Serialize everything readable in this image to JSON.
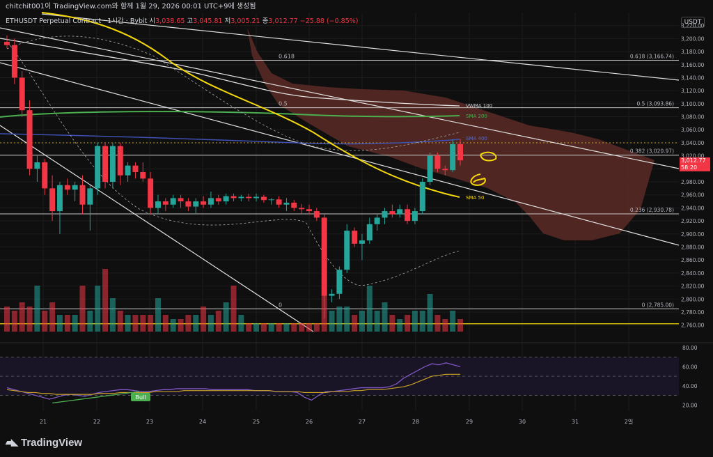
{
  "header": {
    "text": "chitchit001이 TradingView.com와 함께 1월 29, 2026 00:01 UTC+9에 생성됨"
  },
  "symbol": {
    "name": "ETHUSDT Perpetual Contract · 1시간 · Bybit",
    "open_label": "시",
    "open": "3,038.65",
    "high_label": "고",
    "high": "3,045.81",
    "low_label": "저",
    "low": "3,005.21",
    "close_label": "종",
    "close": "3,012.77",
    "change": "−25.88 (−0.85%)"
  },
  "currency_label": "USDT",
  "last_price": {
    "value": "3,012.77",
    "countdown": "58:20"
  },
  "logo": {
    "text": "TradingView"
  },
  "colors": {
    "up": "#26a69a",
    "down": "#f23645",
    "cloud": "#5b2a25",
    "sma50": "#f5d90a",
    "sma200": "#4caf50",
    "sma400": "#3f51b5",
    "vwma": "#e0e0e0",
    "rsi": "#7e57c2",
    "rsi_ma": "#c9a227"
  },
  "chart_data": [
    {
      "type": "candlestick",
      "ylim": [
        2750,
        3240
      ],
      "y_ticks": [
        "3,220.00",
        "3,200.00",
        "3,180.00",
        "3,160.00",
        "3,140.00",
        "3,120.00",
        "3,100.00",
        "3,080.00",
        "3,060.00",
        "3,040.00",
        "3,020.00",
        "3,000.00",
        "2,980.00",
        "2,960.00",
        "2,940.00",
        "2,920.00",
        "2,900.00",
        "2,880.00",
        "2,860.00",
        "2,840.00",
        "2,820.00",
        "2,800.00",
        "2,780.00",
        "2,760.00"
      ],
      "x_ticks": [
        "21",
        "22",
        "23",
        "24",
        "25",
        "26",
        "27",
        "28",
        "29",
        "30",
        "31",
        "2일"
      ],
      "fib_levels": [
        {
          "label": "0.618 (3,166.74)",
          "value": 3166.74
        },
        {
          "label": "0.5 (3,093.86)",
          "value": 3093.86
        },
        {
          "label": "0.382 (3,020.97)",
          "value": 3020.97
        },
        {
          "label": "0.236 (2,930.78)",
          "value": 2930.78
        },
        {
          "label": "0 (2,785.00)",
          "value": 2785.0
        }
      ],
      "fib_inline": [
        "0.618",
        "0.5",
        "0"
      ],
      "indicator_labels": [
        "VWMA 100",
        "SMA 200",
        "SMA 400",
        "SMA 50"
      ],
      "candles": [
        [
          3195,
          3205,
          3185,
          3190
        ],
        [
          3190,
          3200,
          3130,
          3140
        ],
        [
          3140,
          3150,
          3080,
          3090
        ],
        [
          3090,
          3105,
          2990,
          3000
        ],
        [
          3000,
          3020,
          2980,
          3010
        ],
        [
          3010,
          3015,
          2960,
          2970
        ],
        [
          2970,
          2990,
          2920,
          2935
        ],
        [
          2935,
          2980,
          2900,
          2975
        ],
        [
          2975,
          2985,
          2960,
          2968
        ],
        [
          2968,
          2980,
          2950,
          2975
        ],
        [
          2975,
          2990,
          2930,
          2945
        ],
        [
          2945,
          2975,
          2905,
          2970
        ],
        [
          2970,
          3040,
          2960,
          3035
        ],
        [
          3035,
          3040,
          2970,
          2980
        ],
        [
          2980,
          3040,
          2970,
          3035
        ],
        [
          3035,
          3040,
          2975,
          2990
        ],
        [
          2990,
          3010,
          2980,
          3005
        ],
        [
          3005,
          3010,
          2985,
          2995
        ],
        [
          2995,
          3010,
          2980,
          2985
        ],
        [
          2985,
          2995,
          2930,
          2940
        ],
        [
          2940,
          2960,
          2930,
          2950
        ],
        [
          2950,
          2955,
          2935,
          2945
        ],
        [
          2945,
          2960,
          2940,
          2955
        ],
        [
          2955,
          2960,
          2940,
          2950
        ],
        [
          2950,
          2955,
          2935,
          2942
        ],
        [
          2942,
          2955,
          2930,
          2950
        ],
        [
          2950,
          2958,
          2940,
          2945
        ],
        [
          2945,
          2965,
          2940,
          2955
        ],
        [
          2955,
          2960,
          2945,
          2950
        ],
        [
          2950,
          2962,
          2945,
          2958
        ],
        [
          2958,
          2962,
          2950,
          2955
        ],
        [
          2955,
          2960,
          2950,
          2957
        ],
        [
          2957,
          2962,
          2950,
          2955
        ],
        [
          2955,
          2962,
          2950,
          2957
        ],
        [
          2957,
          2960,
          2948,
          2952
        ],
        [
          2952,
          2955,
          2945,
          2953
        ],
        [
          2953,
          2958,
          2940,
          2945
        ],
        [
          2945,
          2955,
          2935,
          2948
        ],
        [
          2948,
          2952,
          2935,
          2940
        ],
        [
          2940,
          2946,
          2932,
          2938
        ],
        [
          2938,
          2945,
          2930,
          2935
        ],
        [
          2935,
          2940,
          2920,
          2925
        ],
        [
          2925,
          2930,
          2770,
          2805
        ],
        [
          2805,
          2815,
          2795,
          2808
        ],
        [
          2808,
          2850,
          2800,
          2845
        ],
        [
          2845,
          2915,
          2840,
          2905
        ],
        [
          2905,
          2910,
          2880,
          2885
        ],
        [
          2885,
          2900,
          2860,
          2890
        ],
        [
          2890,
          2925,
          2885,
          2915
        ],
        [
          2915,
          2930,
          2905,
          2925
        ],
        [
          2925,
          2940,
          2915,
          2935
        ],
        [
          2935,
          2945,
          2925,
          2930
        ],
        [
          2930,
          2945,
          2925,
          2938
        ],
        [
          2938,
          2945,
          2915,
          2920
        ],
        [
          2920,
          2940,
          2915,
          2935
        ],
        [
          2935,
          2985,
          2930,
          2980
        ],
        [
          2980,
          3025,
          2975,
          3020
        ],
        [
          3020,
          3025,
          2995,
          3000
        ],
        [
          3000,
          3005,
          2990,
          2998
        ],
        [
          2998,
          3045,
          2995,
          3038
        ],
        [
          3038,
          3046,
          3005,
          3013
        ]
      ],
      "volume_rel": [
        0.3,
        0.25,
        0.35,
        0.3,
        0.55,
        0.25,
        0.35,
        0.2,
        0.2,
        0.2,
        0.55,
        0.25,
        0.55,
        0.75,
        0.4,
        0.25,
        0.2,
        0.2,
        0.2,
        0.2,
        0.4,
        0.2,
        0.15,
        0.15,
        0.2,
        0.2,
        0.3,
        0.2,
        0.25,
        0.35,
        0.55,
        0.2,
        0.1,
        0.1,
        0.1,
        0.1,
        0.1,
        0.1,
        0.1,
        0.1,
        0.1,
        0.1,
        0.45,
        0.25,
        0.3,
        0.3,
        0.2,
        0.25,
        0.55,
        0.25,
        0.35,
        0.2,
        0.15,
        0.2,
        0.25,
        0.25,
        0.45,
        0.2,
        0.15,
        0.25,
        0.15
      ]
    },
    {
      "type": "line",
      "name": "RSI",
      "ylim": [
        10,
        85
      ],
      "y_ticks": [
        "80.00",
        "60.00",
        "40.00",
        "20.00"
      ],
      "bands": [
        70,
        50,
        30
      ],
      "divergence_label": "Bull",
      "values": [
        38,
        36,
        34,
        32,
        30,
        28,
        26,
        28,
        30,
        31,
        30,
        29,
        31,
        33,
        34,
        35,
        36,
        36,
        35,
        34,
        34,
        35,
        36,
        36,
        37,
        37,
        37,
        37,
        37,
        36,
        36,
        36,
        36,
        36,
        36,
        35,
        35,
        35,
        34,
        34,
        34,
        33,
        28,
        25,
        30,
        34,
        34,
        35,
        36,
        37,
        38,
        38,
        38,
        38,
        39,
        42,
        48,
        52,
        56,
        60,
        63,
        62,
        64,
        62,
        60
      ],
      "ma_values": [
        36,
        35,
        34,
        33,
        33,
        32,
        32,
        31,
        31,
        31,
        31,
        31,
        31,
        32,
        32,
        32,
        33,
        33,
        33,
        33,
        33,
        34,
        34,
        34,
        34,
        35,
        35,
        35,
        35,
        35,
        35,
        35,
        35,
        35,
        35,
        35,
        35,
        35,
        34,
        34,
        34,
        34,
        33,
        33,
        33,
        33,
        34,
        34,
        34,
        35,
        35,
        36,
        36,
        36,
        37,
        38,
        39,
        41,
        44,
        47,
        50,
        51,
        52,
        52,
        52
      ]
    }
  ]
}
